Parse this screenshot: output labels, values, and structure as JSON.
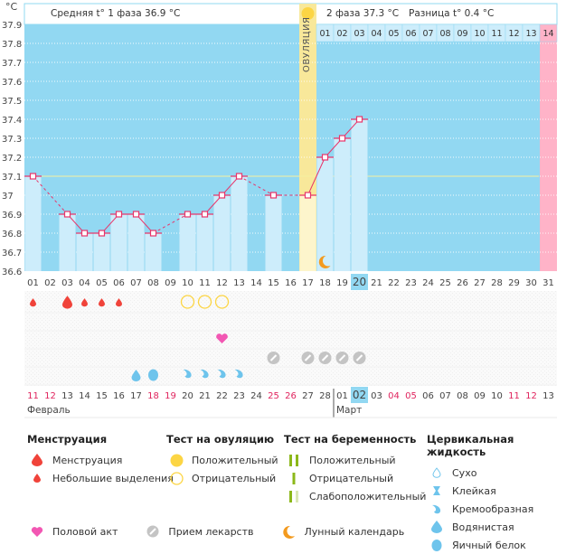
{
  "header": {
    "unit_label": "°C",
    "phase1_avg": "Средняя t° 1 фаза 36.9 °C",
    "phase2_avg": "2 фаза 37.3 °C",
    "difference": "Разница t° 0.4 °C",
    "ovulation_label": "ОВУЛЯЦИЯ"
  },
  "colors": {
    "background_blue": "#92d8f2",
    "bar_light": "#cdedfb",
    "ovulation_yellow": "#f8e89a",
    "ovulation_bar": "#fdf5cc",
    "next_cycle_pink": "#ffb3c8",
    "line": "#e8356a",
    "coverline": "#f5f0a0",
    "weekend_text": "#e0245e",
    "today_highlight": "#92d8f2"
  },
  "chart_data": {
    "type": "line",
    "title": "",
    "xlabel": "",
    "ylabel": "°C",
    "ylim": [
      36.6,
      37.9
    ],
    "yticks": [
      "36.6",
      "36.7",
      "36.8",
      "36.9",
      "37",
      "37.1",
      "37.2",
      "37.3",
      "37.4",
      "37.5",
      "37.6",
      "37.7",
      "37.8",
      "37.9"
    ],
    "cycle_days": [
      "01",
      "02",
      "03",
      "04",
      "05",
      "06",
      "07",
      "08",
      "09",
      "10",
      "11",
      "12",
      "13",
      "14",
      "15",
      "16",
      "17",
      "18",
      "19",
      "20",
      "21",
      "22",
      "23",
      "24",
      "25",
      "26",
      "27",
      "28",
      "29",
      "30",
      "31"
    ],
    "temperatures": [
      37.1,
      null,
      36.9,
      36.8,
      36.8,
      36.9,
      36.9,
      36.8,
      null,
      36.9,
      36.9,
      37.0,
      37.1,
      null,
      37.0,
      null,
      37.0,
      37.2,
      37.3,
      37.4,
      null,
      null,
      null,
      null,
      null,
      null,
      null,
      null,
      null,
      null,
      null
    ],
    "coverline": 37.1,
    "ovulation_day": 17,
    "current_day": 20,
    "next_cycle_start_day": 31,
    "luteal_day_labels": [
      "01",
      "02",
      "03",
      "04",
      "05",
      "06",
      "07",
      "08",
      "09",
      "10",
      "11",
      "12",
      "13",
      "14"
    ],
    "calendar_dates": [
      "11",
      "12",
      "13",
      "14",
      "15",
      "16",
      "17",
      "18",
      "19",
      "20",
      "21",
      "22",
      "23",
      "24",
      "25",
      "26",
      "27",
      "28",
      "01",
      "02",
      "03",
      "04",
      "05",
      "06",
      "07",
      "08",
      "09",
      "10",
      "11",
      "12",
      "13"
    ],
    "weekend_indices": [
      0,
      1,
      7,
      8,
      14,
      15,
      21,
      22,
      28,
      29
    ],
    "today_date_index": 19,
    "months": [
      {
        "label": "Февраль",
        "start_index": 0
      },
      {
        "label": "Март",
        "start_index": 18
      }
    ],
    "markers": {
      "menstruation_heavy": [
        3
      ],
      "menstruation_light": [
        1,
        4,
        5,
        6
      ],
      "ovulation_test_negative": [
        10,
        11,
        12
      ],
      "intercourse": [
        12
      ],
      "medication": [
        15,
        17,
        18,
        19,
        20
      ],
      "cervical_watery": [
        7
      ],
      "cervical_eggwhite": [
        8
      ],
      "cervical_creamy": [
        10,
        11,
        12,
        13
      ],
      "moon": [
        18
      ]
    }
  },
  "legend": {
    "menstruation": {
      "title": "Менструация",
      "items": [
        "Менструация",
        "Небольшие выделения"
      ]
    },
    "ovulation_test": {
      "title": "Тест на овуляцию",
      "items": [
        "Положительный",
        "Отрицательный"
      ]
    },
    "pregnancy_test": {
      "title": "Тест на беременность",
      "items": [
        "Положительный",
        "Отрицательный",
        "Слабоположительный"
      ]
    },
    "cervical_fluid": {
      "title": "Цервикальная жидкость",
      "items": [
        "Сухо",
        "Клейкая",
        "Кремообразная",
        "Водянистая",
        "Яичный белок"
      ]
    },
    "other": [
      "Половой акт",
      "Прием лекарств",
      "Лунный календарь"
    ]
  }
}
